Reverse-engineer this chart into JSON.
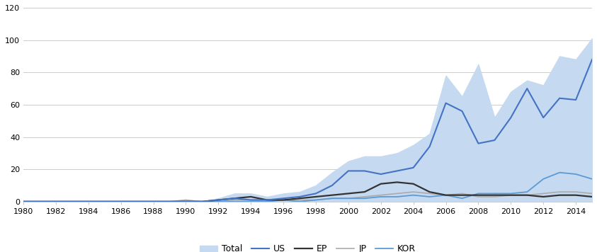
{
  "years": [
    1980,
    1981,
    1982,
    1983,
    1984,
    1985,
    1986,
    1987,
    1988,
    1989,
    1990,
    1991,
    1992,
    1993,
    1994,
    1995,
    1996,
    1997,
    1998,
    1999,
    2000,
    2001,
    2002,
    2003,
    2004,
    2005,
    2006,
    2007,
    2008,
    2009,
    2010,
    2011,
    2012,
    2013,
    2014,
    2015
  ],
  "total": [
    0,
    0,
    0,
    0,
    0,
    0,
    0,
    0,
    0,
    0,
    1,
    0,
    2,
    5,
    5,
    3,
    5,
    6,
    10,
    18,
    25,
    28,
    28,
    30,
    35,
    42,
    78,
    65,
    85,
    52,
    68,
    75,
    72,
    90,
    88,
    101
  ],
  "US": [
    0,
    0,
    0,
    0,
    0,
    0,
    0,
    0,
    0,
    0,
    0,
    0,
    1,
    2,
    1,
    1,
    2,
    3,
    5,
    10,
    19,
    19,
    17,
    19,
    21,
    34,
    61,
    56,
    36,
    38,
    52,
    70,
    52,
    64,
    63,
    88
  ],
  "EP": [
    0,
    0,
    0,
    0,
    0,
    0,
    0,
    0,
    0,
    0,
    0,
    0,
    1,
    2,
    3,
    1,
    1,
    2,
    3,
    4,
    5,
    6,
    11,
    12,
    11,
    6,
    4,
    4,
    4,
    4,
    4,
    4,
    3,
    4,
    4,
    3
  ],
  "JP": [
    0,
    0,
    0,
    0,
    0,
    0,
    0,
    0,
    0,
    0,
    1,
    0,
    0,
    1,
    1,
    1,
    1,
    1,
    1,
    2,
    2,
    3,
    4,
    5,
    6,
    5,
    4,
    5,
    3,
    3,
    4,
    4,
    5,
    6,
    6,
    5
  ],
  "KOR": [
    0,
    0,
    0,
    0,
    0,
    0,
    0,
    0,
    0,
    0,
    0,
    0,
    0,
    0,
    0,
    0,
    1,
    0,
    1,
    2,
    2,
    2,
    3,
    3,
    4,
    3,
    4,
    2,
    5,
    5,
    5,
    6,
    14,
    18,
    17,
    14
  ],
  "total_color": "#c5d9f1",
  "US_color": "#4472c4",
  "EP_color": "#333333",
  "JP_color": "#aaaaaa",
  "KOR_color": "#5b9bd5",
  "bg_color": "#ffffff",
  "ylim": [
    0,
    120
  ],
  "yticks": [
    0,
    20,
    40,
    60,
    80,
    100,
    120
  ],
  "xtick_start": 1980,
  "xtick_end": 2014,
  "xtick_step": 2,
  "legend_labels": [
    "Total",
    "US",
    "EP",
    "JP",
    "KOR"
  ]
}
